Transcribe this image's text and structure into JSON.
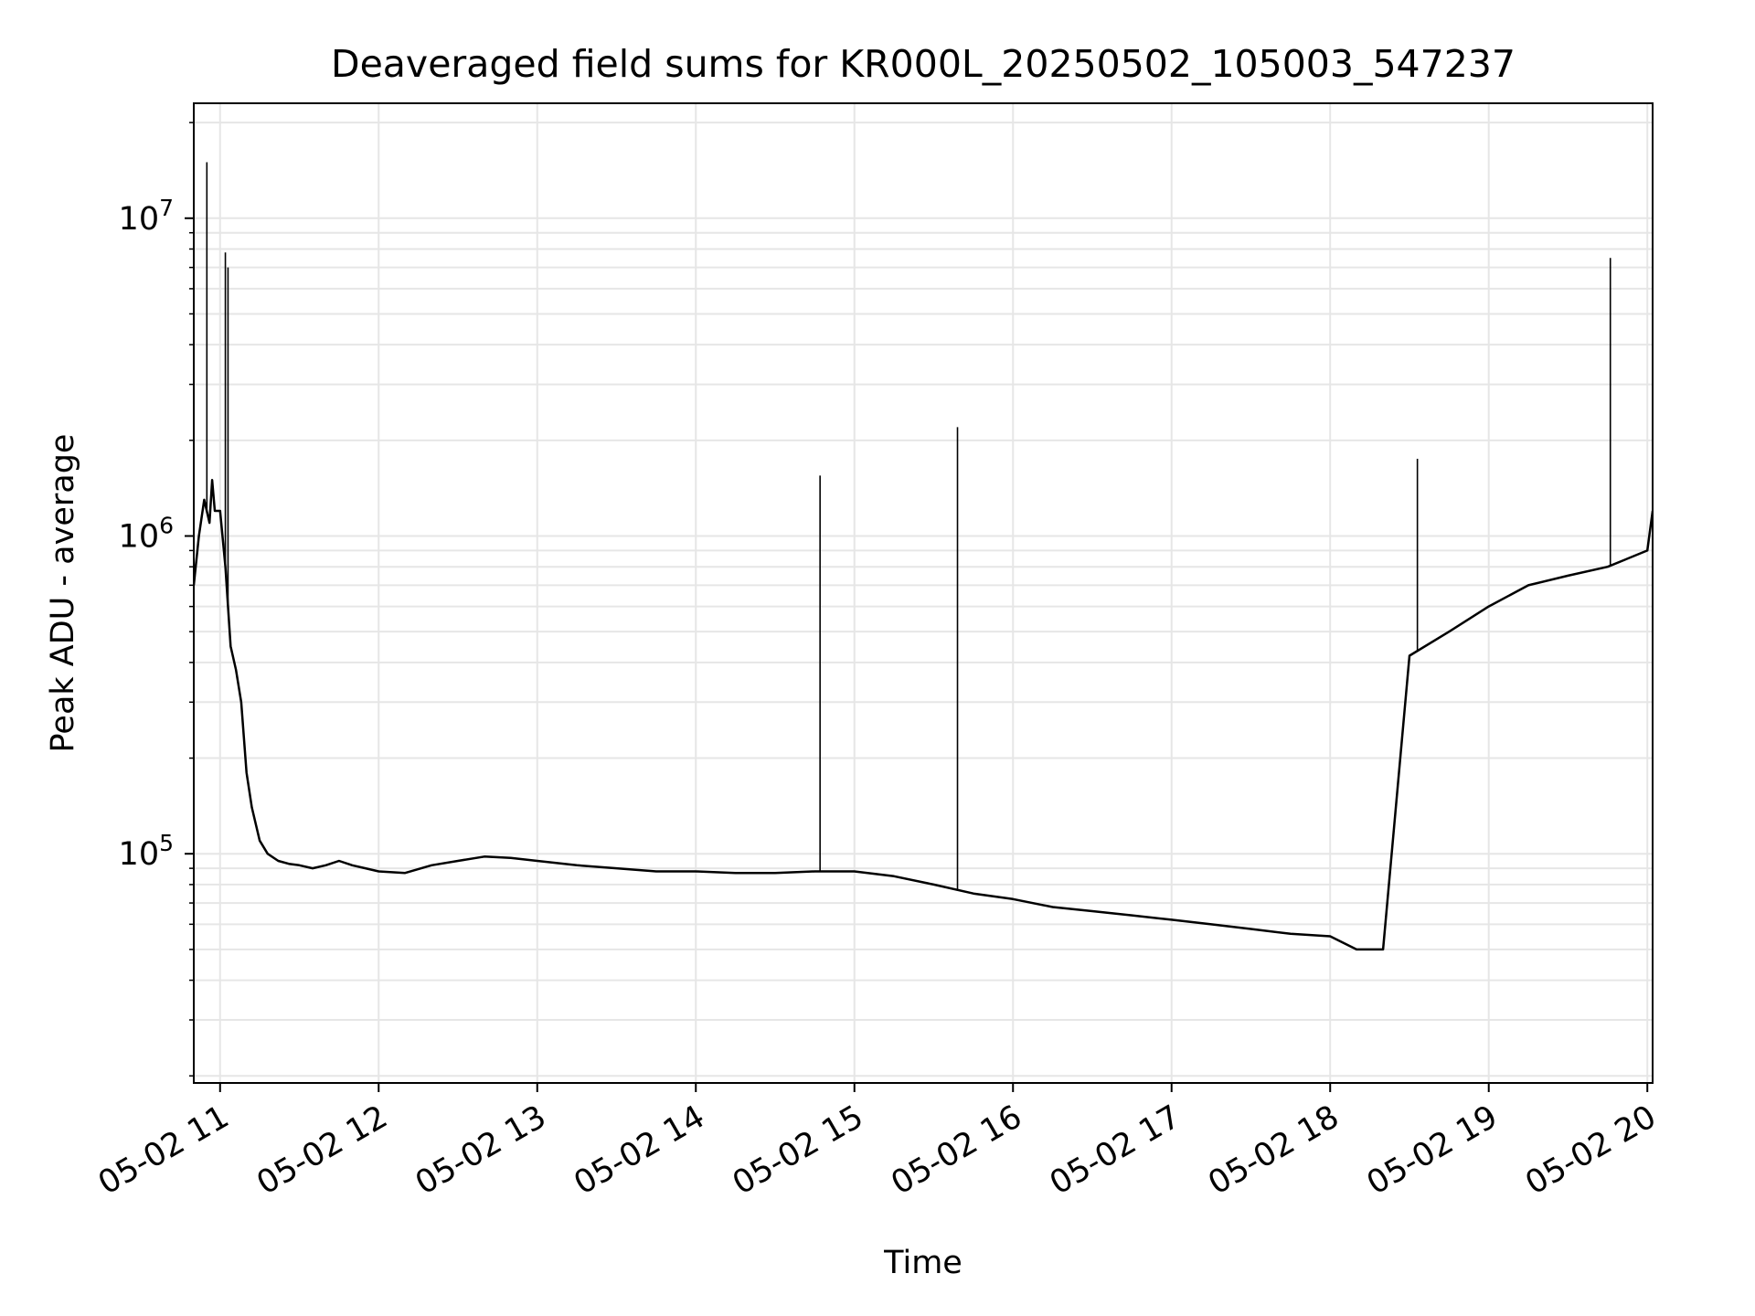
{
  "chart_data": {
    "type": "line",
    "title": "Deaveraged field sums for KR000L_20250502_105003_547237",
    "xlabel": "Time",
    "ylabel": "Peak ADU - average",
    "yscale": "log",
    "grid": true,
    "line_color": "#000000",
    "grid_color": "#e6e6e6",
    "xlim": [
      "2025-05-02 10:50:03",
      "2025-05-02 20:02:00"
    ],
    "ylim": [
      19000,
      23000000
    ],
    "x_ticks": [
      {
        "value": "2025-05-02 11:00",
        "label": "05-02 11"
      },
      {
        "value": "2025-05-02 12:00",
        "label": "05-02 12"
      },
      {
        "value": "2025-05-02 13:00",
        "label": "05-02 13"
      },
      {
        "value": "2025-05-02 14:00",
        "label": "05-02 14"
      },
      {
        "value": "2025-05-02 15:00",
        "label": "05-02 15"
      },
      {
        "value": "2025-05-02 16:00",
        "label": "05-02 16"
      },
      {
        "value": "2025-05-02 17:00",
        "label": "05-02 17"
      },
      {
        "value": "2025-05-02 18:00",
        "label": "05-02 18"
      },
      {
        "value": "2025-05-02 19:00",
        "label": "05-02 19"
      },
      {
        "value": "2025-05-02 20:00",
        "label": "05-02 20"
      }
    ],
    "y_ticks": [
      {
        "value": 100000,
        "mantissa": "10",
        "exponent": "5"
      },
      {
        "value": 1000000,
        "mantissa": "10",
        "exponent": "6"
      },
      {
        "value": 10000000,
        "mantissa": "10",
        "exponent": "7"
      }
    ],
    "series": [
      {
        "x": [
          "2025-05-02 10:50:03",
          "2025-05-02 10:52",
          "2025-05-02 10:54",
          "2025-05-02 10:56",
          "2025-05-02 10:57",
          "2025-05-02 10:58",
          "2025-05-02 11:00",
          "2025-05-02 11:02",
          "2025-05-02 11:04",
          "2025-05-02 11:06",
          "2025-05-02 11:08",
          "2025-05-02 11:10",
          "2025-05-02 11:12",
          "2025-05-02 11:15",
          "2025-05-02 11:18",
          "2025-05-02 11:22",
          "2025-05-02 11:26",
          "2025-05-02 11:30",
          "2025-05-02 11:35",
          "2025-05-02 11:40",
          "2025-05-02 11:45",
          "2025-05-02 11:50",
          "2025-05-02 11:55",
          "2025-05-02 12:00",
          "2025-05-02 12:10",
          "2025-05-02 12:20",
          "2025-05-02 12:30",
          "2025-05-02 12:40",
          "2025-05-02 12:50",
          "2025-05-02 13:00",
          "2025-05-02 13:15",
          "2025-05-02 13:30",
          "2025-05-02 13:45",
          "2025-05-02 14:00",
          "2025-05-02 14:15",
          "2025-05-02 14:30",
          "2025-05-02 14:45",
          "2025-05-02 15:00",
          "2025-05-02 15:15",
          "2025-05-02 15:30",
          "2025-05-02 15:45",
          "2025-05-02 16:00",
          "2025-05-02 16:15",
          "2025-05-02 16:30",
          "2025-05-02 16:45",
          "2025-05-02 17:00",
          "2025-05-02 17:15",
          "2025-05-02 17:30",
          "2025-05-02 17:45",
          "2025-05-02 18:00",
          "2025-05-02 18:10",
          "2025-05-02 18:20",
          "2025-05-02 18:30",
          "2025-05-02 18:45",
          "2025-05-02 19:00",
          "2025-05-02 19:15",
          "2025-05-02 19:30",
          "2025-05-02 19:45",
          "2025-05-02 20:00",
          "2025-05-02 20:02"
        ],
        "y": [
          700000,
          1000000,
          1300000,
          1100000,
          1500000,
          1200000,
          1200000,
          800000,
          450000,
          380000,
          300000,
          180000,
          140000,
          110000,
          100000,
          95000,
          93000,
          92000,
          90000,
          92000,
          95000,
          92000,
          90000,
          88000,
          87000,
          92000,
          95000,
          98000,
          97000,
          95000,
          92000,
          90000,
          88000,
          88000,
          87000,
          87000,
          88000,
          88000,
          85000,
          80000,
          75000,
          72000,
          68000,
          66000,
          64000,
          62000,
          60000,
          58000,
          56000,
          55000,
          50000,
          50000,
          420000,
          500000,
          600000,
          700000,
          750000,
          800000,
          900000,
          1200000
        ]
      },
      {
        "name": "",
        "x": [
          "2025-05-02 10:55",
          "2025-05-02 11:02",
          "2025-05-02 11:03",
          "2025-05-02 14:47",
          "2025-05-02 15:39",
          "2025-05-02 19:46",
          "2025-05-02 18:33"
        ],
        "y": [
          15000000,
          7800000,
          7000000,
          1550000,
          2200000,
          7500000,
          1750000
        ]
      }
    ]
  }
}
